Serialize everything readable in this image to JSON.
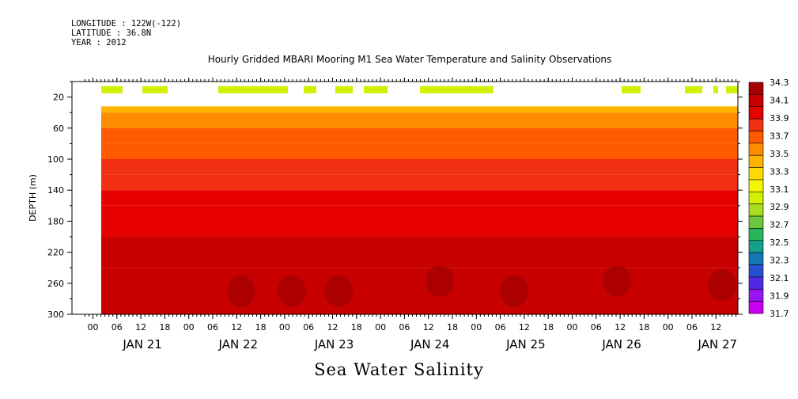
{
  "header": {
    "longitude": "LONGITUDE : 122W(-122)",
    "latitude": "LATITUDE : 36.8N",
    "year": "YEAR : 2012"
  },
  "title": "Hourly Gridded MBARI Mooring M1 Sea Water Temperature and Salinity Observations",
  "variable_title": "Sea Water Salinity",
  "chart_data": {
    "type": "heatmap",
    "title": "Hourly Gridded MBARI Mooring M1 Sea Water Temperature and Salinity Observations",
    "subtitle": "Sea Water Salinity",
    "xlabel": "",
    "ylabel": "DEPTH (m)",
    "x_hour_ticks": [
      "00",
      "06",
      "12",
      "18",
      "00",
      "06",
      "12",
      "18",
      "00",
      "06",
      "12",
      "18",
      "00",
      "06",
      "12",
      "18",
      "00",
      "06",
      "12",
      "18",
      "00",
      "06",
      "12",
      "18",
      "00",
      "06",
      "12"
    ],
    "x_day_labels": [
      "JAN 21",
      "JAN 22",
      "JAN 23",
      "JAN 24",
      "JAN 25",
      "JAN 26",
      "JAN 27"
    ],
    "y_ticks": [
      20,
      60,
      100,
      140,
      180,
      220,
      260,
      300
    ],
    "y_range": [
      300,
      0
    ],
    "colorbar_levels": [
      "34.3",
      "34.1",
      "33.9",
      "33.7",
      "33.5",
      "33.3",
      "33.1",
      "32.9",
      "32.7",
      "32.5",
      "32.3",
      "32.1",
      "31.9",
      "31.7"
    ],
    "colorbar_colors": [
      "#a80000",
      "#c80000",
      "#e60000",
      "#f03010",
      "#ff5a00",
      "#ff8c00",
      "#ffb400",
      "#ffdc00",
      "#f5f500",
      "#d2f000",
      "#a8dc1e",
      "#6cc83c",
      "#28b45a",
      "#14a08c",
      "#1478b4",
      "#2850d2",
      "#5028e6",
      "#9614f0",
      "#c800f0"
    ],
    "near_surface_depth_m": 10,
    "depth_bands": [
      {
        "depth_m": 40,
        "salinity": 33.2
      },
      {
        "depth_m": 60,
        "salinity": 33.35
      },
      {
        "depth_m": 80,
        "salinity": 33.5
      },
      {
        "depth_m": 100,
        "salinity": 33.6
      },
      {
        "depth_m": 120,
        "salinity": 33.75
      },
      {
        "depth_m": 140,
        "salinity": 33.85
      },
      {
        "depth_m": 160,
        "salinity": 33.95
      },
      {
        "depth_m": 200,
        "salinity": 34.05
      },
      {
        "depth_m": 240,
        "salinity": 34.15
      },
      {
        "depth_m": 300,
        "salinity": 34.25
      }
    ]
  },
  "colors": {
    "surface_bar": "#d2f000",
    "upper_layer": "#f5f500",
    "deep_core": "#a80000"
  }
}
